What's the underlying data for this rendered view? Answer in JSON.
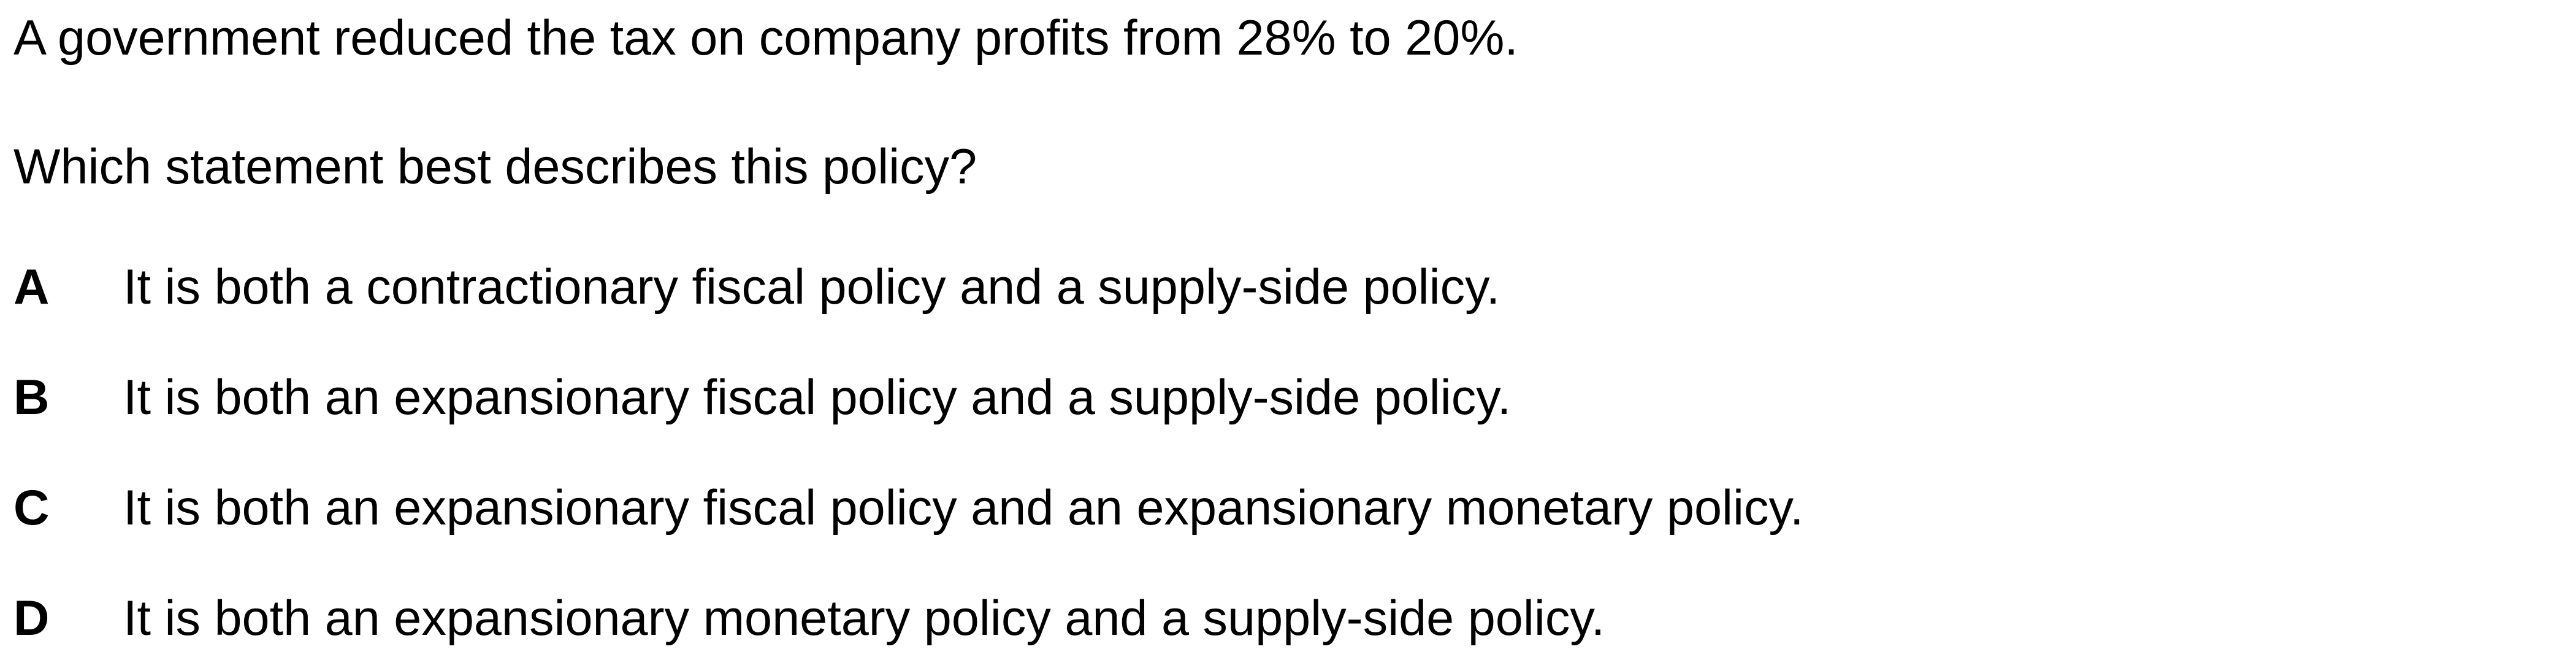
{
  "question": {
    "stem": "A government reduced the tax on company profits from 28% to 20%.",
    "prompt": "Which statement best describes this policy?"
  },
  "options": [
    {
      "letter": "A",
      "text": "It is both a contractionary fiscal policy and a supply-side policy."
    },
    {
      "letter": "B",
      "text": "It is both an expansionary fiscal policy and a supply-side policy."
    },
    {
      "letter": "C",
      "text": "It is both an expansionary fiscal policy and an expansionary monetary policy."
    },
    {
      "letter": "D",
      "text": "It is both an expansionary monetary policy and a supply-side policy."
    }
  ]
}
